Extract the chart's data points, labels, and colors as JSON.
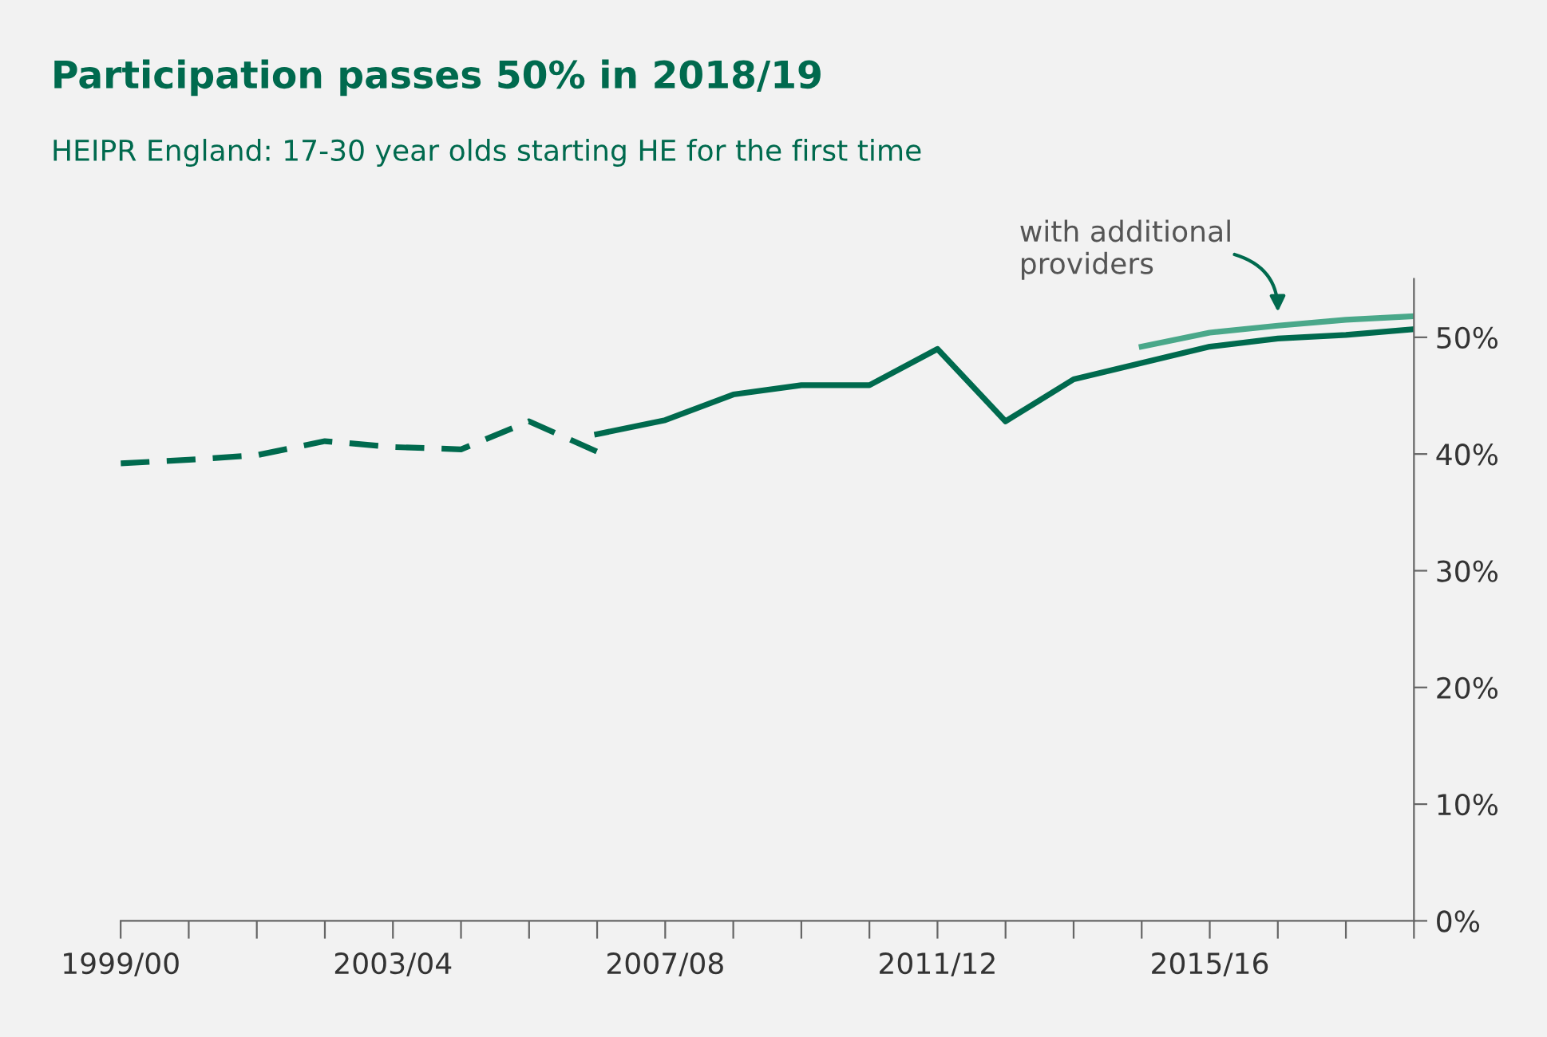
{
  "chart_data": {
    "type": "line",
    "title": "Participation passes 50% in 2018/19",
    "subtitle": "HEIPR England: 17-30 year olds starting HE for the first time",
    "categories": [
      "1999/00",
      null,
      null,
      null,
      "2003/04",
      null,
      null,
      null,
      "2007/08",
      null,
      null,
      null,
      "2011/12",
      null,
      null,
      null,
      "2015/16",
      null,
      null,
      null
    ],
    "series": [
      {
        "color": "#006a4e",
        "line_style": "dashed",
        "values": [
          39.2,
          39.5,
          39.9,
          41.1,
          40.6,
          40.4,
          42.8,
          40.2,
          null,
          null,
          null,
          null,
          null,
          null,
          null,
          null,
          null,
          null,
          null,
          null
        ]
      },
      {
        "color": "#006a4e",
        "line_style": "solid",
        "values": [
          null,
          null,
          null,
          null,
          null,
          null,
          null,
          41.7,
          42.9,
          45.1,
          45.9,
          45.9,
          49.0,
          42.8,
          46.4,
          47.8,
          49.2,
          49.9,
          50.2,
          50.7
        ]
      },
      {
        "color": "#4aa88a",
        "line_style": "solid",
        "values": [
          null,
          null,
          null,
          null,
          null,
          null,
          null,
          null,
          null,
          null,
          null,
          null,
          null,
          null,
          null,
          49.2,
          50.4,
          51.0,
          51.5,
          51.8
        ]
      }
    ],
    "annotations": [
      "with additional providers"
    ],
    "ylim": [
      0,
      55
    ],
    "yticks": [
      {
        "value": 0,
        "label": "0%"
      },
      {
        "value": 10,
        "label": "10%"
      },
      {
        "value": 20,
        "label": "20%"
      },
      {
        "value": 30,
        "label": "30%"
      },
      {
        "value": 40,
        "label": "40%"
      },
      {
        "value": 50,
        "label": "50%"
      }
    ],
    "grid": false,
    "legend": false,
    "marker": "none"
  }
}
